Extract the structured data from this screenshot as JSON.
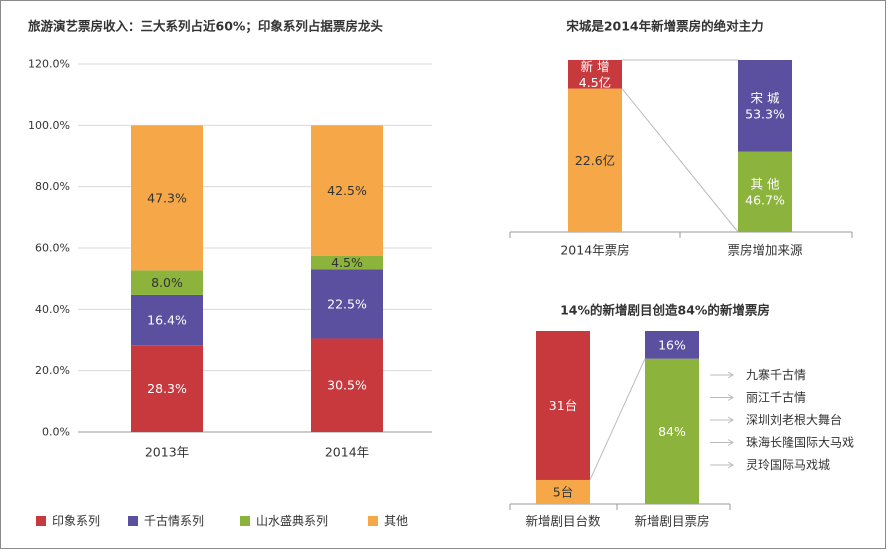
{
  "colors": {
    "yinxiang": "#c8393e",
    "qianguqing": "#5b4fa0",
    "shanshui": "#8cb43c",
    "other": "#f6a848",
    "axis": "#999999",
    "grid": "#d9d9d9",
    "text": "#333333"
  },
  "chart_data": [
    {
      "type": "bar",
      "stacked": true,
      "title": "旅游演艺票房收入：三大系列占近60%；印象系列占据票房龙头",
      "categories": [
        "2013年",
        "2014年"
      ],
      "ylim": [
        0,
        120
      ],
      "yticks": [
        "0.0%",
        "20.0%",
        "40.0%",
        "60.0%",
        "80.0%",
        "100.0%",
        "120.0%"
      ],
      "grid": true,
      "legend_position": "bottom",
      "series": [
        {
          "name": "印象系列",
          "values": [
            28.3,
            30.5
          ],
          "labels": [
            "28.3%",
            "30.5%"
          ]
        },
        {
          "name": "千古情系列",
          "values": [
            16.4,
            22.5
          ],
          "labels": [
            "16.4%",
            "22.5%"
          ]
        },
        {
          "name": "山水盛典系列",
          "values": [
            8.0,
            4.5
          ],
          "labels": [
            "8.0%",
            "4.5%"
          ]
        },
        {
          "name": "其他",
          "values": [
            47.3,
            42.5
          ],
          "labels": [
            "47.3%",
            "42.5%"
          ]
        }
      ]
    },
    {
      "type": "bar",
      "stacked": true,
      "title": "宋城是2014年新增票房的绝对主力",
      "categories": [
        "2014年票房",
        "票房增加来源"
      ],
      "segments": [
        {
          "category": "2014年票房",
          "value": 22.6,
          "label": "22.6亿",
          "name": "",
          "color_key": "other"
        },
        {
          "category": "2014年票房",
          "value": 4.5,
          "label": "4.5亿",
          "name": "新 增",
          "color_key": "yinxiang"
        },
        {
          "category": "票房增加来源",
          "value": 46.7,
          "label": "46.7%",
          "name": "其 他",
          "color_key": "shanshui"
        },
        {
          "category": "票房增加来源",
          "value": 53.3,
          "label": "53.3%",
          "name": "宋 城",
          "color_key": "qianguqing"
        }
      ]
    },
    {
      "type": "bar",
      "stacked": true,
      "title": "14%的新增剧目创造84%的新增票房",
      "categories": [
        "新增剧目台数",
        "新增剧目票房"
      ],
      "segments": [
        {
          "category": "新增剧目台数",
          "value": 5,
          "label": "5台",
          "color_key": "other"
        },
        {
          "category": "新增剧目台数",
          "value": 31,
          "label": "31台",
          "color_key": "yinxiang"
        },
        {
          "category": "新增剧目票房",
          "value": 84,
          "label": "84%",
          "color_key": "shanshui"
        },
        {
          "category": "新增剧目票房",
          "value": 16,
          "label": "16%",
          "color_key": "qianguqing"
        }
      ],
      "annotations": [
        "九寨千古情",
        "丽江千古情",
        "深圳刘老根大舞台",
        "珠海长隆国际大马戏",
        "灵玲国际马戏城"
      ]
    }
  ]
}
